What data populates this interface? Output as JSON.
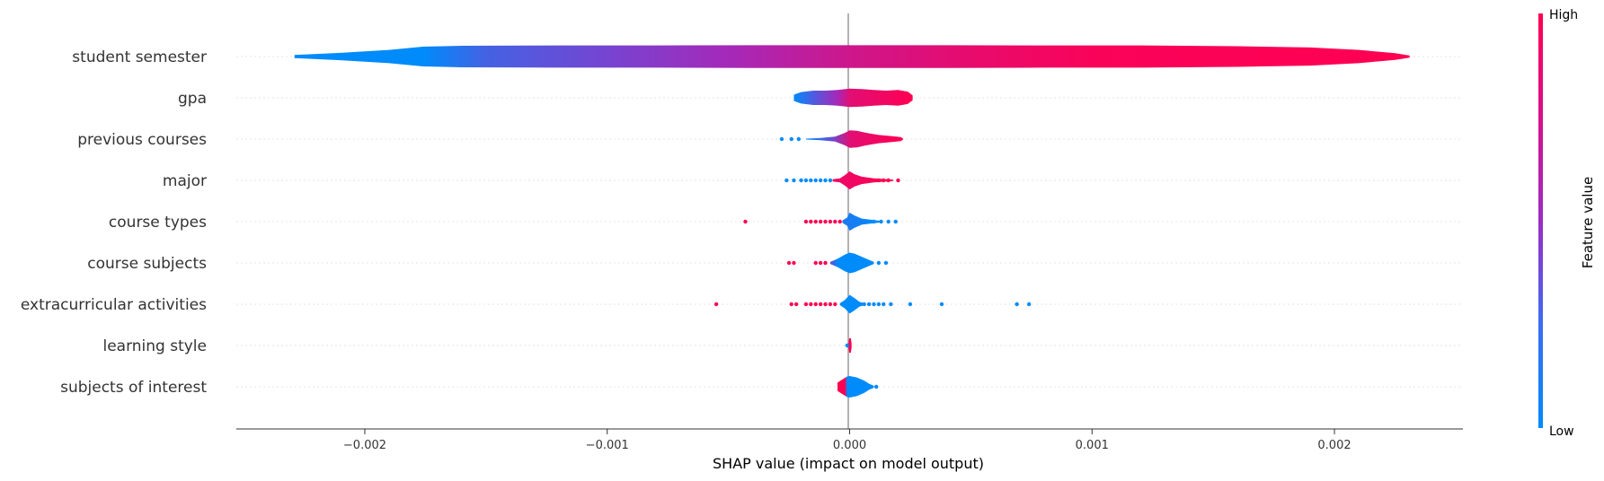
{
  "chart_data": {
    "type": "violin",
    "xlabel": "SHAP value (impact on model output)",
    "xlim": [
      -0.00253,
      0.00253
    ],
    "xticks": [
      {
        "value": -0.002,
        "label": "−0.002"
      },
      {
        "value": -0.001,
        "label": "−0.001"
      },
      {
        "value": 0.0,
        "label": "0.000"
      },
      {
        "value": 0.001,
        "label": "0.001"
      },
      {
        "value": 0.002,
        "label": "0.002"
      }
    ],
    "colorbar": {
      "title": "Feature value",
      "high_label": "High",
      "low_label": "Low",
      "low_color": "#008bfb",
      "high_color": "#ff0052"
    },
    "features": [
      {
        "name": "student semester",
        "profile": [
          [
            -0.00229,
            0.08
          ],
          [
            -0.0021,
            0.18
          ],
          [
            -0.0019,
            0.32
          ],
          [
            -0.00176,
            0.48
          ],
          [
            -0.0016,
            0.52
          ],
          [
            -0.0012,
            0.54
          ],
          [
            -0.0008,
            0.54
          ],
          [
            -0.0004,
            0.55
          ],
          [
            0.0,
            0.55
          ],
          [
            0.0004,
            0.55
          ],
          [
            0.0008,
            0.54
          ],
          [
            0.0012,
            0.54
          ],
          [
            0.0016,
            0.5
          ],
          [
            0.0019,
            0.44
          ],
          [
            0.0021,
            0.32
          ],
          [
            0.00225,
            0.16
          ],
          [
            0.00231,
            0.05
          ]
        ],
        "color_stops": [
          [
            -0.00229,
            0.0
          ],
          [
            -0.00176,
            0.0
          ],
          [
            -0.0015,
            0.22
          ],
          [
            -0.001,
            0.38
          ],
          [
            -0.0005,
            0.55
          ],
          [
            0.0,
            0.75
          ],
          [
            0.0005,
            0.88
          ],
          [
            0.001,
            0.97
          ],
          [
            0.00231,
            1.0
          ]
        ]
      },
      {
        "name": "gpa",
        "profile": [
          [
            -0.00023,
            0.15
          ],
          [
            -0.0002,
            0.28
          ],
          [
            -0.00015,
            0.35
          ],
          [
            -0.0001,
            0.35
          ],
          [
            -5e-05,
            0.38
          ],
          [
            0.0,
            0.45
          ],
          [
            5e-05,
            0.42
          ],
          [
            0.0001,
            0.38
          ],
          [
            0.00015,
            0.35
          ],
          [
            0.0002,
            0.38
          ],
          [
            0.00024,
            0.3
          ],
          [
            0.00026,
            0.12
          ]
        ],
        "color_stops": [
          [
            -0.00023,
            0.0
          ],
          [
            -0.00015,
            0.25
          ],
          [
            -5e-05,
            0.55
          ],
          [
            0.0,
            0.85
          ],
          [
            0.00026,
            1.0
          ]
        ]
      },
      {
        "name": "previous courses",
        "profile": [
          [
            -0.00018,
            0.02
          ],
          [
            -0.00012,
            0.05
          ],
          [
            -6e-05,
            0.12
          ],
          [
            -2e-05,
            0.3
          ],
          [
            0.0,
            0.42
          ],
          [
            3e-05,
            0.4
          ],
          [
            7e-05,
            0.3
          ],
          [
            0.00012,
            0.2
          ],
          [
            0.00017,
            0.15
          ],
          [
            0.00021,
            0.1
          ],
          [
            0.00022,
            0.04
          ]
        ],
        "color_stops": [
          [
            -0.00018,
            0.0
          ],
          [
            -8e-05,
            0.3
          ],
          [
            0.0,
            0.85
          ],
          [
            0.00022,
            1.0
          ]
        ],
        "points": [
          {
            "x": -0.00028,
            "c": "low"
          },
          {
            "x": -0.00024,
            "c": "low"
          },
          {
            "x": -0.00021,
            "c": "low"
          }
        ]
      },
      {
        "name": "major",
        "profile": [
          [
            -7e-05,
            0.05
          ],
          [
            -4e-05,
            0.1
          ],
          [
            -2e-05,
            0.25
          ],
          [
            0.0,
            0.44
          ],
          [
            2e-05,
            0.3
          ],
          [
            5e-05,
            0.18
          ],
          [
            0.0001,
            0.1
          ],
          [
            0.00015,
            0.06
          ],
          [
            0.00018,
            0.03
          ]
        ],
        "color_stops": [
          [
            -7e-05,
            0.9
          ],
          [
            0.00018,
            1.0
          ]
        ],
        "points": [
          {
            "x": -0.00026,
            "c": "low"
          },
          {
            "x": -0.00023,
            "c": "low"
          },
          {
            "x": -0.0002,
            "c": "low"
          },
          {
            "x": -0.00018,
            "c": "low"
          },
          {
            "x": -0.00016,
            "c": "low"
          },
          {
            "x": -0.00014,
            "c": "low"
          },
          {
            "x": -0.00012,
            "c": "low"
          },
          {
            "x": -0.0001,
            "c": "low"
          },
          {
            "x": -8e-05,
            "c": "low"
          },
          {
            "x": 0.00012,
            "c": "high"
          },
          {
            "x": 0.00014,
            "c": "high"
          },
          {
            "x": 0.00016,
            "c": "high"
          },
          {
            "x": 0.0002,
            "c": "high"
          }
        ]
      },
      {
        "name": "course types",
        "profile": [
          [
            -3e-05,
            0.05
          ],
          [
            -1e-05,
            0.2
          ],
          [
            0.0,
            0.44
          ],
          [
            2e-05,
            0.3
          ],
          [
            5e-05,
            0.15
          ],
          [
            0.0001,
            0.08
          ],
          [
            0.00013,
            0.04
          ]
        ],
        "color_stops": [
          [
            -3e-05,
            0.1
          ],
          [
            0.00013,
            0.0
          ]
        ],
        "points": [
          {
            "x": -0.00043,
            "c": "high"
          },
          {
            "x": -0.00018,
            "c": "high"
          },
          {
            "x": -0.00016,
            "c": "high"
          },
          {
            "x": -0.00014,
            "c": "high"
          },
          {
            "x": -0.00012,
            "c": "high"
          },
          {
            "x": -0.0001,
            "c": "high"
          },
          {
            "x": -8e-05,
            "c": "high"
          },
          {
            "x": -6e-05,
            "c": "high"
          },
          {
            "x": -4e-05,
            "c": "high"
          },
          {
            "x": 8e-05,
            "c": "low"
          },
          {
            "x": 0.0001,
            "c": "low"
          },
          {
            "x": 0.00013,
            "c": "low"
          },
          {
            "x": 0.00016,
            "c": "low"
          },
          {
            "x": 0.00019,
            "c": "low"
          }
        ]
      },
      {
        "name": "course subjects",
        "profile": [
          [
            -8e-05,
            0.05
          ],
          [
            -5e-05,
            0.2
          ],
          [
            -2e-05,
            0.4
          ],
          [
            0.0,
            0.5
          ],
          [
            2e-05,
            0.45
          ],
          [
            5e-05,
            0.3
          ],
          [
            8e-05,
            0.15
          ],
          [
            0.0001,
            0.05
          ]
        ],
        "color_stops": [
          [
            -8e-05,
            0.35
          ],
          [
            -5e-05,
            0.0
          ],
          [
            0.0001,
            0.0
          ]
        ],
        "points": [
          {
            "x": -0.00025,
            "c": "high"
          },
          {
            "x": -0.00023,
            "c": "high"
          },
          {
            "x": -0.00014,
            "c": "high"
          },
          {
            "x": -0.00012,
            "c": "high"
          },
          {
            "x": -0.0001,
            "c": "high"
          },
          {
            "x": 0.00012,
            "c": "low"
          },
          {
            "x": 0.00015,
            "c": "low"
          }
        ]
      },
      {
        "name": "extracurricular activities",
        "profile": [
          [
            -4e-05,
            0.05
          ],
          [
            -2e-05,
            0.2
          ],
          [
            0.0,
            0.45
          ],
          [
            2e-05,
            0.3
          ],
          [
            4e-05,
            0.12
          ],
          [
            6e-05,
            0.05
          ]
        ],
        "color_stops": [
          [
            -4e-05,
            0.0
          ],
          [
            6e-05,
            0.0
          ]
        ],
        "points": [
          {
            "x": -0.00055,
            "c": "high"
          },
          {
            "x": -0.00024,
            "c": "high"
          },
          {
            "x": -0.00022,
            "c": "high"
          },
          {
            "x": -0.00018,
            "c": "high"
          },
          {
            "x": -0.00016,
            "c": "high"
          },
          {
            "x": -0.00014,
            "c": "high"
          },
          {
            "x": -0.00012,
            "c": "high"
          },
          {
            "x": -0.0001,
            "c": "high"
          },
          {
            "x": -8e-05,
            "c": "high"
          },
          {
            "x": -6e-05,
            "c": "high"
          },
          {
            "x": 6e-05,
            "c": "low"
          },
          {
            "x": 8e-05,
            "c": "low"
          },
          {
            "x": 0.0001,
            "c": "low"
          },
          {
            "x": 0.00012,
            "c": "low"
          },
          {
            "x": 0.00014,
            "c": "low"
          },
          {
            "x": 0.00017,
            "c": "low"
          },
          {
            "x": 0.00025,
            "c": "low"
          },
          {
            "x": 0.00038,
            "c": "low"
          },
          {
            "x": 0.00069,
            "c": "low"
          },
          {
            "x": 0.00074,
            "c": "low"
          }
        ]
      },
      {
        "name": "learning style",
        "profile": [
          [
            -5e-06,
            0.1
          ],
          [
            -2e-06,
            0.35
          ],
          [
            5e-06,
            0.35
          ],
          [
            8e-06,
            0.1
          ]
        ],
        "color_stops": [
          [
            -5e-06,
            1.0
          ],
          [
            8e-06,
            1.0
          ]
        ],
        "points": [
          {
            "x": -1e-05,
            "c": "low"
          }
        ]
      },
      {
        "name": "subjects of interest",
        "profile": [
          [
            -5e-05,
            0.2
          ],
          [
            -3e-05,
            0.35
          ],
          [
            -1e-05,
            0.5
          ],
          [
            0.0,
            0.52
          ],
          [
            3e-05,
            0.45
          ],
          [
            6e-05,
            0.3
          ],
          [
            8e-05,
            0.15
          ],
          [
            0.0001,
            0.05
          ]
        ],
        "color_stops": [
          [
            -5e-05,
            1.0
          ],
          [
            -2e-05,
            1.0
          ],
          [
            -1e-05,
            0.0
          ],
          [
            0.0001,
            0.0
          ]
        ],
        "points": [
          {
            "x": 0.00011,
            "c": "low"
          }
        ]
      }
    ]
  }
}
